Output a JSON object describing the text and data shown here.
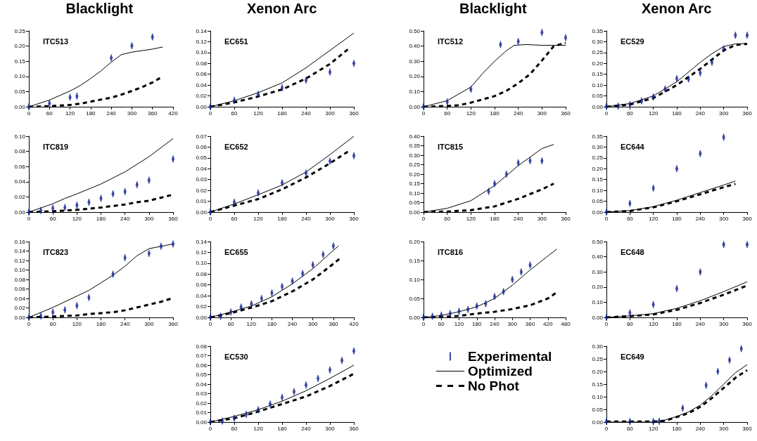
{
  "chart_data": [
    {
      "type": "line",
      "title": "ITC513",
      "annotations": [
        "Blacklight"
      ],
      "xlim": [
        0,
        420
      ],
      "xticks": [
        0,
        60,
        120,
        180,
        240,
        300,
        360,
        420
      ],
      "ylim": [
        0,
        0.25
      ],
      "yticks": [
        {
          "value": 0,
          "label": "0.00"
        },
        {
          "value": 0.05,
          "label": "0.05"
        },
        {
          "value": 0.1,
          "label": "0.10"
        },
        {
          "value": 0.15,
          "label": "0.15"
        },
        {
          "value": 0.2,
          "label": "0.20"
        },
        {
          "value": 0.25,
          "label": "0.25"
        }
      ],
      "series": [
        {
          "type": "scatter",
          "color": "#0b1c8c",
          "x": [
            0,
            60,
            120,
            140,
            240,
            300,
            360
          ],
          "values": [
            0,
            0.011,
            0.031,
            0.035,
            0.161,
            0.201,
            0.23
          ]
        },
        {
          "color": "#000000",
          "x": [
            0,
            60,
            120,
            150,
            180,
            210,
            240,
            270,
            300,
            360,
            390
          ],
          "values": [
            0,
            0.022,
            0.052,
            0.07,
            0.093,
            0.118,
            0.147,
            0.172,
            0.18,
            0.19,
            0.197
          ]
        },
        {
          "line_style": "dashed",
          "color": "#000000",
          "x": [
            0,
            60,
            120,
            150,
            180,
            240,
            270,
            300,
            330,
            360,
            390
          ],
          "values": [
            0,
            0.002,
            0.006,
            0.01,
            0.017,
            0.03,
            0.04,
            0.052,
            0.065,
            0.08,
            0.1
          ]
        }
      ]
    },
    {
      "type": "line",
      "title": "EC651",
      "annotations": [
        "Xenon Arc"
      ],
      "xlim": [
        0,
        360
      ],
      "xticks": [
        0,
        60,
        120,
        180,
        240,
        300,
        360
      ],
      "ylim": [
        0,
        0.14
      ],
      "yticks": [
        {
          "value": 0,
          "label": "0.00"
        },
        {
          "value": 0.02,
          "label": "0.02"
        },
        {
          "value": 0.04,
          "label": "0.04"
        },
        {
          "value": 0.06,
          "label": "0.06"
        },
        {
          "value": 0.08,
          "label": "0.08"
        },
        {
          "value": 0.1,
          "label": "0.10"
        },
        {
          "value": 0.12,
          "label": "0.12"
        },
        {
          "value": 0.14,
          "label": "0.14"
        }
      ],
      "series": [
        {
          "type": "scatter",
          "color": "#0b1c8c",
          "x": [
            0,
            60,
            120,
            180,
            240,
            300,
            360
          ],
          "values": [
            0,
            0.012,
            0.023,
            0.035,
            0.049,
            0.064,
            0.08
          ]
        },
        {
          "type": "line",
          "color": "#000000",
          "x": [
            0,
            60,
            120,
            180,
            240,
            300,
            360
          ],
          "values": [
            0,
            0.011,
            0.026,
            0.044,
            0.072,
            0.104,
            0.136
          ]
        },
        {
          "type": "line",
          "line_style": "dashed",
          "color": "#000000",
          "x": [
            0,
            60,
            120,
            180,
            240,
            300,
            350
          ],
          "values": [
            0,
            0.008,
            0.019,
            0.032,
            0.052,
            0.079,
            0.109
          ]
        }
      ]
    },
    {
      "type": "line",
      "title": "ITC512",
      "annotations": [
        "Blacklight"
      ],
      "xlim": [
        0,
        360
      ],
      "xticks": [
        0,
        60,
        120,
        180,
        240,
        300,
        360
      ],
      "ylim": [
        0,
        0.5
      ],
      "yticks": [
        {
          "value": 0,
          "label": "0.00"
        },
        {
          "value": 0.1,
          "label": "0.10"
        },
        {
          "value": 0.2,
          "label": "0.20"
        },
        {
          "value": 0.3,
          "label": "0.30"
        },
        {
          "value": 0.4,
          "label": "0.40"
        },
        {
          "value": 0.5,
          "label": "0.50"
        }
      ],
      "series": [
        {
          "type": "scatter",
          "color": "#0b1c8c",
          "x": [
            0,
            60,
            120,
            195,
            240,
            300,
            360
          ],
          "values": [
            0,
            0.031,
            0.115,
            0.41,
            0.43,
            0.49,
            0.455
          ]
        },
        {
          "type": "line",
          "color": "#000000",
          "x": [
            0,
            60,
            120,
            150,
            180,
            210,
            230,
            260,
            300,
            360
          ],
          "values": [
            0,
            0.04,
            0.13,
            0.22,
            0.3,
            0.37,
            0.405,
            0.41,
            0.405,
            0.405
          ]
        },
        {
          "type": "line",
          "line_style": "dashed",
          "color": "#000000",
          "x": [
            0,
            60,
            90,
            120,
            180,
            210,
            240,
            270,
            300,
            330,
            360
          ],
          "values": [
            0,
            0.005,
            0.01,
            0.027,
            0.07,
            0.105,
            0.155,
            0.215,
            0.305,
            0.4,
            0.42
          ]
        }
      ]
    },
    {
      "type": "line",
      "title": "EC529",
      "annotations": [
        "Xenon Arc"
      ],
      "xlim": [
        0,
        360
      ],
      "xticks": [
        0,
        60,
        120,
        180,
        240,
        300,
        360
      ],
      "ylim": [
        0,
        0.35
      ],
      "yticks": [
        {
          "value": 0,
          "label": "0.00"
        },
        {
          "value": 0.05,
          "label": "0.05"
        },
        {
          "value": 0.1,
          "label": "0.10"
        },
        {
          "value": 0.15,
          "label": "0.15"
        },
        {
          "value": 0.2,
          "label": "0.20"
        },
        {
          "value": 0.25,
          "label": "0.25"
        },
        {
          "value": 0.3,
          "label": "0.30"
        },
        {
          "value": 0.35,
          "label": "0.35"
        }
      ],
      "series": [
        {
          "type": "scatter",
          "color": "#0b1c8c",
          "x": [
            0,
            30,
            60,
            90,
            120,
            150,
            180,
            210,
            240,
            270,
            300,
            330,
            360
          ],
          "values": [
            0.002,
            0.003,
            0.01,
            0.027,
            0.045,
            0.082,
            0.13,
            0.128,
            0.156,
            0.205,
            0.267,
            0.33,
            0.33
          ]
        },
        {
          "type": "line",
          "color": "#000000",
          "x": [
            0,
            60,
            120,
            180,
            240,
            270,
            300,
            330,
            360
          ],
          "values": [
            0,
            0.015,
            0.05,
            0.115,
            0.205,
            0.245,
            0.278,
            0.29,
            0.292
          ]
        },
        {
          "type": "line",
          "line_style": "dashed",
          "color": "#000000",
          "x": [
            0,
            60,
            120,
            180,
            240,
            300,
            330,
            360
          ],
          "values": [
            0,
            0.01,
            0.04,
            0.1,
            0.175,
            0.26,
            0.285,
            0.29
          ]
        }
      ]
    },
    {
      "type": "line",
      "title": "ITC819",
      "xlim": [
        0,
        360
      ],
      "xticks": [
        0,
        60,
        120,
        180,
        240,
        300,
        360
      ],
      "ylim": [
        0,
        0.1
      ],
      "yticks": [
        {
          "value": 0,
          "label": "0.00"
        },
        {
          "value": 0.02,
          "label": "0.02"
        },
        {
          "value": 0.04,
          "label": "0.04"
        },
        {
          "value": 0.06,
          "label": "0.06"
        },
        {
          "value": 0.08,
          "label": "0.08"
        },
        {
          "value": 0.1,
          "label": "0.10"
        }
      ],
      "series": [
        {
          "type": "scatter",
          "color": "#0b1c8c",
          "x": [
            0,
            30,
            60,
            90,
            120,
            150,
            180,
            210,
            240,
            270,
            300,
            360
          ],
          "values": [
            0,
            0.002,
            0.005,
            0.006,
            0.009,
            0.013,
            0.018,
            0.024,
            0.027,
            0.036,
            0.042,
            0.07
          ]
        },
        {
          "type": "line",
          "color": "#000000",
          "x": [
            0,
            60,
            90,
            120,
            180,
            240,
            300,
            360
          ],
          "values": [
            0,
            0.011,
            0.018,
            0.024,
            0.037,
            0.053,
            0.073,
            0.097
          ]
        },
        {
          "type": "line",
          "line_style": "dashed",
          "color": "#000000",
          "x": [
            0,
            60,
            120,
            180,
            240,
            270,
            300,
            330,
            360
          ],
          "values": [
            0,
            0.001,
            0.003,
            0.006,
            0.01,
            0.013,
            0.015,
            0.019,
            0.023
          ]
        }
      ]
    },
    {
      "type": "line",
      "title": "EC652",
      "xlim": [
        0,
        360
      ],
      "xticks": [
        0,
        60,
        120,
        180,
        240,
        300,
        360
      ],
      "ylim": [
        0,
        0.07
      ],
      "yticks": [
        {
          "value": 0,
          "label": "0.00"
        },
        {
          "value": 0.01,
          "label": "0.01"
        },
        {
          "value": 0.02,
          "label": "0.02"
        },
        {
          "value": 0.03,
          "label": "0.03"
        },
        {
          "value": 0.04,
          "label": "0.04"
        },
        {
          "value": 0.05,
          "label": "0.05"
        },
        {
          "value": 0.06,
          "label": "0.06"
        },
        {
          "value": 0.07,
          "label": "0.07"
        }
      ],
      "series": [
        {
          "type": "scatter",
          "color": "#0b1c8c",
          "x": [
            0,
            60,
            120,
            180,
            240,
            300,
            360
          ],
          "values": [
            0,
            0.009,
            0.0177,
            0.027,
            0.036,
            0.047,
            0.052
          ]
        },
        {
          "type": "line",
          "color": "#000000",
          "x": [
            0,
            60,
            120,
            180,
            240,
            300,
            360
          ],
          "values": [
            0,
            0.0075,
            0.016,
            0.025,
            0.037,
            0.053,
            0.07
          ]
        },
        {
          "type": "line",
          "line_style": "dashed",
          "color": "#000000",
          "x": [
            0,
            60,
            120,
            180,
            240,
            300,
            350
          ],
          "values": [
            0,
            0.006,
            0.012,
            0.021,
            0.032,
            0.045,
            0.057
          ]
        }
      ]
    },
    {
      "type": "line",
      "title": "ITC815",
      "xlim": [
        0,
        360
      ],
      "xticks": [
        0,
        60,
        120,
        180,
        240,
        300,
        360
      ],
      "ylim": [
        0,
        0.4
      ],
      "yticks": [
        {
          "value": 0,
          "label": "0.00"
        },
        {
          "value": 0.05,
          "label": "0.05"
        },
        {
          "value": 0.1,
          "label": "0.10"
        },
        {
          "value": 0.15,
          "label": "0.15"
        },
        {
          "value": 0.2,
          "label": "0.20"
        },
        {
          "value": 0.25,
          "label": "0.25"
        },
        {
          "value": 0.3,
          "label": "0.30"
        },
        {
          "value": 0.35,
          "label": "0.35"
        },
        {
          "value": 0.4,
          "label": "0.40"
        }
      ],
      "series": [
        {
          "type": "scatter",
          "color": "#0b1c8c",
          "x": [
            165,
            180,
            210,
            240,
            270,
            300
          ],
          "values": [
            0.109,
            0.15,
            0.2,
            0.26,
            0.27,
            0.27
          ]
        },
        {
          "type": "line",
          "color": "#000000",
          "x": [
            0,
            60,
            120,
            180,
            240,
            300,
            330
          ],
          "values": [
            0,
            0.02,
            0.06,
            0.14,
            0.245,
            0.335,
            0.357
          ]
        },
        {
          "type": "line",
          "line_style": "dashed",
          "color": "#000000",
          "x": [
            0,
            60,
            120,
            180,
            240,
            300,
            330
          ],
          "values": [
            0,
            0.003,
            0.01,
            0.03,
            0.07,
            0.12,
            0.15
          ]
        }
      ]
    },
    {
      "type": "line",
      "title": "EC644",
      "xlim": [
        0,
        360
      ],
      "xticks": [
        0,
        60,
        120,
        180,
        240,
        300,
        360
      ],
      "ylim": [
        0,
        0.35
      ],
      "yticks": [
        {
          "value": 0,
          "label": "0.00"
        },
        {
          "value": 0.05,
          "label": "0.05"
        },
        {
          "value": 0.1,
          "label": "0.10"
        },
        {
          "value": 0.15,
          "label": "0.15"
        },
        {
          "value": 0.2,
          "label": "0.20"
        },
        {
          "value": 0.25,
          "label": "0.25"
        },
        {
          "value": 0.3,
          "label": "0.30"
        },
        {
          "value": 0.35,
          "label": "0.35"
        }
      ],
      "series": [
        {
          "type": "scatter",
          "color": "#0b1c8c",
          "x": [
            0,
            60,
            120,
            180,
            240,
            300
          ],
          "values": [
            0,
            0.04,
            0.11,
            0.2,
            0.27,
            0.345
          ]
        },
        {
          "type": "line",
          "color": "#000000",
          "x": [
            0,
            60,
            120,
            180,
            240,
            300,
            330
          ],
          "values": [
            0,
            0.007,
            0.025,
            0.055,
            0.09,
            0.125,
            0.143
          ]
        },
        {
          "type": "line",
          "line_style": "dashed",
          "color": "#000000",
          "x": [
            0,
            60,
            120,
            180,
            240,
            300,
            330
          ],
          "values": [
            0,
            0.005,
            0.022,
            0.05,
            0.082,
            0.115,
            0.13
          ]
        }
      ]
    },
    {
      "type": "line",
      "title": "ITC823",
      "xlim": [
        0,
        360
      ],
      "xticks": [
        0,
        60,
        120,
        180,
        240,
        300,
        360
      ],
      "ylim": [
        0,
        0.16
      ],
      "yticks": [
        {
          "value": 0,
          "label": "0.00"
        },
        {
          "value": 0.02,
          "label": "0.02"
        },
        {
          "value": 0.04,
          "label": "0.04"
        },
        {
          "value": 0.06,
          "label": "0.06"
        },
        {
          "value": 0.08,
          "label": "0.08"
        },
        {
          "value": 0.1,
          "label": "0.10"
        },
        {
          "value": 0.12,
          "label": "0.12"
        },
        {
          "value": 0.14,
          "label": "0.14"
        },
        {
          "value": 0.16,
          "label": "0.16"
        }
      ],
      "series": [
        {
          "type": "scatter",
          "color": "#0b1c8c",
          "x": [
            0,
            30,
            60,
            90,
            120,
            150,
            210,
            240,
            300,
            330,
            360
          ],
          "values": [
            0,
            0.003,
            0.011,
            0.016,
            0.025,
            0.042,
            0.091,
            0.126,
            0.135,
            0.15,
            0.155
          ]
        },
        {
          "type": "line",
          "color": "#000000",
          "x": [
            0,
            60,
            120,
            150,
            180,
            210,
            240,
            270,
            300,
            360
          ],
          "values": [
            0,
            0.021,
            0.045,
            0.057,
            0.073,
            0.089,
            0.108,
            0.13,
            0.145,
            0.155
          ]
        },
        {
          "type": "line",
          "line_style": "dashed",
          "color": "#000000",
          "x": [
            0,
            60,
            120,
            150,
            180,
            210,
            240,
            270,
            300,
            330,
            360
          ],
          "values": [
            0,
            0.002,
            0.004,
            0.007,
            0.009,
            0.011,
            0.015,
            0.021,
            0.027,
            0.033,
            0.041
          ]
        }
      ]
    },
    {
      "type": "line",
      "title": "EC655",
      "xlim": [
        0,
        420
      ],
      "xticks": [
        0,
        60,
        120,
        180,
        240,
        300,
        360,
        420
      ],
      "ylim": [
        0,
        0.14
      ],
      "yticks": [
        {
          "value": 0,
          "label": "0.00"
        },
        {
          "value": 0.02,
          "label": "0.02"
        },
        {
          "value": 0.04,
          "label": "0.04"
        },
        {
          "value": 0.06,
          "label": "0.06"
        },
        {
          "value": 0.08,
          "label": "0.08"
        },
        {
          "value": 0.1,
          "label": "0.10"
        },
        {
          "value": 0.12,
          "label": "0.12"
        },
        {
          "value": 0.14,
          "label": "0.14"
        }
      ],
      "series": [
        {
          "type": "scatter",
          "color": "#0b1c8c",
          "x": [
            0,
            30,
            60,
            90,
            120,
            150,
            180,
            210,
            240,
            270,
            300,
            330,
            360
          ],
          "values": [
            0,
            0.002,
            0.01,
            0.019,
            0.025,
            0.035,
            0.045,
            0.057,
            0.067,
            0.081,
            0.097,
            0.116,
            0.132
          ]
        },
        {
          "type": "line",
          "color": "#000000",
          "x": [
            0,
            60,
            120,
            180,
            240,
            300,
            375
          ],
          "values": [
            0,
            0.01,
            0.021,
            0.038,
            0.062,
            0.09,
            0.132
          ]
        },
        {
          "type": "line",
          "line_style": "dashed",
          "color": "#000000",
          "x": [
            0,
            60,
            120,
            180,
            240,
            300,
            350,
            380
          ],
          "values": [
            0,
            0.008,
            0.018,
            0.03,
            0.048,
            0.07,
            0.094,
            0.109
          ]
        }
      ]
    },
    {
      "type": "line",
      "title": "ITC816",
      "legend": "bottom",
      "xlim": [
        0,
        480
      ],
      "xticks": [
        0,
        60,
        120,
        180,
        240,
        300,
        360,
        420,
        480
      ],
      "ylim": [
        0,
        0.2
      ],
      "yticks": [
        {
          "value": 0,
          "label": "0.00"
        },
        {
          "value": 0.05,
          "label": "0.05"
        },
        {
          "value": 0.1,
          "label": "0.10"
        },
        {
          "value": 0.15,
          "label": "0.15"
        },
        {
          "value": 0.2,
          "label": "0.20"
        }
      ],
      "series": [
        {
          "name": "Experimental",
          "type": "scatter",
          "color": "#0b1c8c",
          "x": [
            0,
            30,
            60,
            90,
            120,
            150,
            180,
            210,
            240,
            270,
            300,
            330,
            360
          ],
          "values": [
            0,
            0.003,
            0.006,
            0.01,
            0.016,
            0.021,
            0.03,
            0.036,
            0.055,
            0.068,
            0.1,
            0.12,
            0.138
          ]
        },
        {
          "name": "Optimized",
          "type": "line",
          "color": "#000000",
          "x": [
            0,
            60,
            120,
            180,
            240,
            300,
            360,
            420,
            450
          ],
          "values": [
            0,
            0.005,
            0.015,
            0.028,
            0.05,
            0.085,
            0.125,
            0.162,
            0.18
          ]
        },
        {
          "name": "No Phot",
          "type": "line",
          "line_style": "dashed",
          "color": "#000000",
          "x": [
            0,
            60,
            120,
            180,
            240,
            300,
            360,
            420,
            450
          ],
          "values": [
            0,
            0.001,
            0.004,
            0.01,
            0.015,
            0.022,
            0.032,
            0.05,
            0.066
          ]
        }
      ]
    },
    {
      "type": "line",
      "title": "EC648",
      "xlim": [
        0,
        360
      ],
      "xticks": [
        0,
        60,
        120,
        180,
        240,
        300,
        360
      ],
      "ylim": [
        0,
        0.5
      ],
      "yticks": [
        {
          "value": 0,
          "label": "0.00"
        },
        {
          "value": 0.1,
          "label": "0.10"
        },
        {
          "value": 0.2,
          "label": "0.20"
        },
        {
          "value": 0.3,
          "label": "0.30"
        },
        {
          "value": 0.4,
          "label": "0.40"
        },
        {
          "value": 0.5,
          "label": "0.50"
        }
      ],
      "series": [
        {
          "type": "scatter",
          "color": "#0b1c8c",
          "x": [
            0,
            60,
            120,
            180,
            240,
            300,
            360
          ],
          "values": [
            0,
            0.03,
            0.085,
            0.19,
            0.3,
            0.48,
            0.48
          ]
        },
        {
          "type": "line",
          "color": "#000000",
          "x": [
            0,
            60,
            120,
            180,
            240,
            300,
            360
          ],
          "values": [
            0,
            0.01,
            0.025,
            0.06,
            0.11,
            0.17,
            0.235
          ]
        },
        {
          "type": "line",
          "line_style": "dashed",
          "color": "#000000",
          "x": [
            0,
            60,
            120,
            180,
            240,
            300,
            360
          ],
          "values": [
            0,
            0.008,
            0.02,
            0.05,
            0.095,
            0.15,
            0.21
          ]
        }
      ]
    },
    {
      "type": "line",
      "title": "EC530",
      "xlim": [
        0,
        360
      ],
      "xticks": [
        0,
        60,
        120,
        180,
        240,
        300,
        360
      ],
      "ylim": [
        0,
        0.08
      ],
      "yticks": [
        {
          "value": 0,
          "label": "0.00"
        },
        {
          "value": 0.01,
          "label": "0.01"
        },
        {
          "value": 0.02,
          "label": "0.02"
        },
        {
          "value": 0.03,
          "label": "0.03"
        },
        {
          "value": 0.04,
          "label": "0.04"
        },
        {
          "value": 0.05,
          "label": "0.05"
        },
        {
          "value": 0.06,
          "label": "0.06"
        },
        {
          "value": 0.07,
          "label": "0.07"
        },
        {
          "value": 0.08,
          "label": "0.08"
        }
      ],
      "series": [
        {
          "type": "scatter",
          "color": "#0b1c8c",
          "x": [
            0,
            30,
            60,
            90,
            120,
            150,
            180,
            210,
            240,
            270,
            300,
            330,
            360
          ],
          "values": [
            0,
            0.001,
            0.004,
            0.008,
            0.013,
            0.019,
            0.026,
            0.032,
            0.039,
            0.046,
            0.055,
            0.065,
            0.075
          ]
        },
        {
          "type": "line",
          "color": "#000000",
          "x": [
            0,
            60,
            120,
            180,
            240,
            300,
            360
          ],
          "values": [
            0,
            0.006,
            0.013,
            0.022,
            0.033,
            0.046,
            0.06
          ]
        },
        {
          "type": "line",
          "line_style": "dashed",
          "color": "#000000",
          "x": [
            0,
            60,
            120,
            180,
            240,
            300,
            360
          ],
          "values": [
            0,
            0.004,
            0.011,
            0.019,
            0.027,
            0.038,
            0.051
          ]
        }
      ]
    },
    {
      "type": "line",
      "title": "EC649",
      "xlim": [
        0,
        360
      ],
      "xticks": [
        0,
        60,
        120,
        180,
        240,
        300,
        360
      ],
      "ylim": [
        0,
        0.3
      ],
      "yticks": [
        {
          "value": 0,
          "label": "0.00"
        },
        {
          "value": 0.05,
          "label": "0.05"
        },
        {
          "value": 0.1,
          "label": "0.10"
        },
        {
          "value": 0.15,
          "label": "0.15"
        },
        {
          "value": 0.2,
          "label": "0.20"
        },
        {
          "value": 0.25,
          "label": "0.25"
        },
        {
          "value": 0.3,
          "label": "0.30"
        }
      ],
      "series": [
        {
          "type": "scatter",
          "color": "#0b1c8c",
          "x": [
            0,
            60,
            120,
            135,
            195,
            255,
            285,
            315,
            345
          ],
          "values": [
            0.002,
            0.002,
            0.002,
            0.003,
            0.055,
            0.145,
            0.2,
            0.245,
            0.29
          ]
        },
        {
          "type": "line",
          "color": "#000000",
          "x": [
            0,
            120,
            150,
            180,
            210,
            240,
            270,
            300,
            330,
            360
          ],
          "values": [
            0,
            0,
            0.008,
            0.022,
            0.04,
            0.067,
            0.105,
            0.15,
            0.195,
            0.227
          ]
        },
        {
          "type": "line",
          "line_style": "dashed",
          "color": "#000000",
          "x": [
            0,
            120,
            150,
            180,
            210,
            240,
            270,
            300,
            330,
            360
          ],
          "values": [
            0.002,
            0.002,
            0.005,
            0.02,
            0.035,
            0.06,
            0.095,
            0.135,
            0.175,
            0.205
          ]
        }
      ]
    }
  ]
}
